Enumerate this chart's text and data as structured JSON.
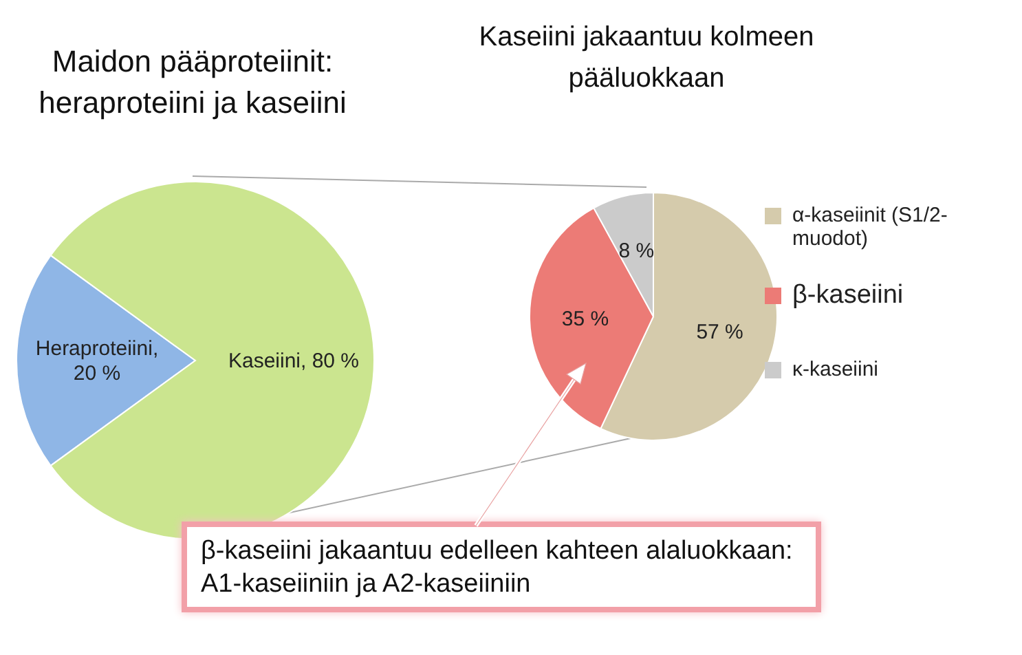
{
  "chart_data": [
    {
      "type": "pie",
      "title": "Maidon pääproteiinit: heraproteiini ja kaseiini",
      "categories": [
        "Heraproteiini",
        "Kaseiini"
      ],
      "values": [
        20,
        80
      ],
      "colors": [
        "#8fb6e6",
        "#cbe58f"
      ],
      "value_labels": [
        ", 20 %",
        ", 80 %"
      ]
    },
    {
      "type": "pie",
      "title": "Kaseiini jakaantuu kolmeen pääluokkaan",
      "categories": [
        "α-kaseiinit (S1/2-muodot)",
        "β-kaseiini",
        "κ-kaseiini"
      ],
      "values": [
        57,
        35,
        8
      ],
      "colors": [
        "#d5cbac",
        "#ec7b76",
        "#cbcbcb"
      ],
      "value_labels": [
        "57 %",
        "35 %",
        "8 %"
      ],
      "legend": "right",
      "annotations": [
        "β-kaseiini jakaantuu edelleen  kahteen alaluokkaan: A1-kaseiiniin ja A2-kaseiiniin"
      ]
    }
  ]
}
